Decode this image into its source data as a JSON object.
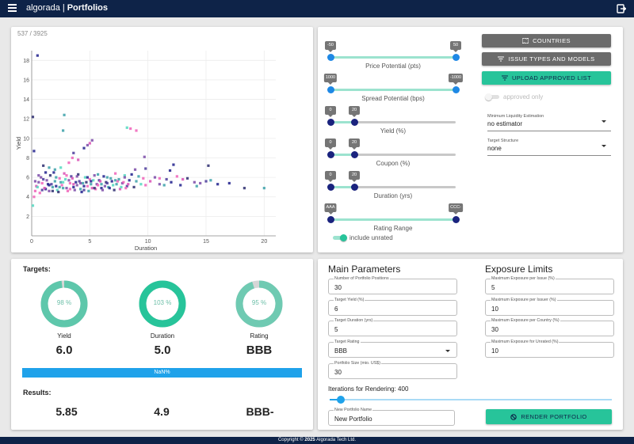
{
  "app": {
    "name": "algorada",
    "separator": "|",
    "page": "Portfolios"
  },
  "footer": {
    "prefix": "Copyright ©",
    "year": "2025",
    "company": "Algorada Tech Ltd."
  },
  "chart": {
    "count_label": "537 / 3925",
    "chart_data": {
      "type": "scatter",
      "xlabel": "Duration",
      "ylabel": "Yield",
      "xlim": [
        0,
        21
      ],
      "ylim": [
        0,
        19
      ],
      "xticks": [
        0,
        5,
        10,
        15,
        20
      ],
      "yticks": [
        2,
        4,
        6,
        8,
        10,
        12,
        14,
        16,
        18
      ],
      "grid": true,
      "colors": [
        "#1e1e8c",
        "#4a3a9a",
        "#7a4aa8",
        "#d94fb4",
        "#f062b8",
        "#54d8c0",
        "#3aa0a8",
        "#2c2c6e"
      ],
      "points": [
        [
          0.5,
          18.5
        ],
        [
          0.1,
          12.2
        ],
        [
          2.8,
          12.4
        ],
        [
          2.7,
          10.8
        ],
        [
          8.2,
          11.1
        ],
        [
          8.5,
          11.0
        ],
        [
          9.0,
          10.8
        ],
        [
          5.0,
          9.5
        ],
        [
          5.2,
          9.8
        ],
        [
          4.8,
          9.3
        ],
        [
          3.6,
          8.5
        ],
        [
          4.5,
          9.0
        ],
        [
          0.2,
          8.7
        ],
        [
          1.0,
          7.2
        ],
        [
          1.5,
          7.0
        ],
        [
          2.0,
          6.8
        ],
        [
          2.5,
          7.0
        ],
        [
          3.2,
          7.5
        ],
        [
          3.5,
          8.0
        ],
        [
          4.0,
          7.8
        ],
        [
          9.7,
          8.1
        ],
        [
          8.9,
          6.8
        ],
        [
          9.8,
          6.9
        ],
        [
          11.9,
          6.7
        ],
        [
          12.2,
          7.3
        ],
        [
          15.2,
          7.2
        ],
        [
          6.5,
          6.0
        ],
        [
          7.2,
          5.7
        ],
        [
          8.0,
          6.2
        ],
        [
          11.0,
          5.9
        ],
        [
          12.5,
          6.1
        ],
        [
          13.0,
          5.8
        ],
        [
          14.0,
          5.5
        ],
        [
          14.5,
          5.4
        ],
        [
          15.0,
          5.6
        ],
        [
          16.0,
          5.3
        ],
        [
          17.0,
          5.4
        ],
        [
          18.3,
          4.9
        ],
        [
          20.0,
          4.9
        ],
        [
          11.4,
          5.2
        ],
        [
          0.1,
          3.1
        ],
        [
          0.2,
          4.0
        ],
        [
          0.3,
          4.6
        ],
        [
          0.4,
          5.1
        ],
        [
          0.6,
          5.5
        ],
        [
          0.8,
          6.0
        ],
        [
          1.0,
          5.8
        ],
        [
          1.2,
          4.8
        ],
        [
          1.4,
          5.3
        ],
        [
          1.6,
          6.2
        ],
        [
          1.8,
          5.0
        ],
        [
          2.0,
          5.6
        ],
        [
          2.2,
          4.7
        ],
        [
          2.4,
          5.9
        ],
        [
          2.6,
          5.2
        ],
        [
          2.8,
          6.4
        ],
        [
          3.0,
          4.9
        ],
        [
          3.2,
          5.7
        ],
        [
          3.4,
          6.1
        ],
        [
          3.6,
          5.0
        ],
        [
          3.8,
          5.5
        ],
        [
          4.0,
          6.3
        ],
        [
          4.2,
          4.8
        ],
        [
          4.4,
          5.4
        ],
        [
          4.6,
          6.0
        ],
        [
          4.8,
          5.1
        ],
        [
          5.0,
          5.8
        ],
        [
          5.2,
          4.9
        ],
        [
          5.4,
          6.2
        ],
        [
          5.6,
          5.3
        ],
        [
          5.8,
          5.7
        ],
        [
          6.0,
          4.9
        ],
        [
          6.2,
          6.1
        ],
        [
          6.4,
          5.5
        ],
        [
          6.6,
          5.0
        ],
        [
          6.8,
          5.9
        ],
        [
          7.0,
          5.2
        ],
        [
          7.2,
          6.4
        ],
        [
          7.4,
          5.6
        ],
        [
          7.6,
          4.8
        ],
        [
          7.8,
          5.4
        ],
        [
          8.0,
          6.0
        ],
        [
          8.2,
          5.1
        ],
        [
          8.4,
          5.7
        ],
        [
          8.6,
          6.3
        ],
        [
          8.8,
          5.0
        ],
        [
          9.0,
          5.6
        ],
        [
          9.2,
          6.1
        ],
        [
          9.4,
          5.3
        ],
        [
          9.6,
          5.9
        ],
        [
          9.8,
          5.2
        ],
        [
          10.2,
          5.6
        ],
        [
          10.6,
          6.0
        ],
        [
          11.0,
          5.3
        ],
        [
          11.6,
          5.8
        ],
        [
          12.0,
          5.5
        ],
        [
          12.8,
          5.2
        ],
        [
          13.4,
          5.9
        ],
        [
          14.2,
          5.1
        ],
        [
          15.4,
          5.7
        ],
        [
          0.5,
          5.0
        ],
        [
          0.7,
          4.4
        ],
        [
          0.9,
          5.4
        ],
        [
          1.1,
          4.9
        ],
        [
          1.3,
          5.7
        ],
        [
          1.5,
          4.6
        ],
        [
          1.7,
          5.3
        ],
        [
          1.9,
          6.5
        ],
        [
          2.1,
          5.1
        ],
        [
          2.3,
          4.5
        ],
        [
          2.5,
          5.5
        ],
        [
          2.7,
          4.9
        ],
        [
          2.9,
          5.8
        ],
        [
          3.1,
          4.6
        ],
        [
          3.3,
          5.4
        ],
        [
          3.5,
          5.9
        ],
        [
          3.7,
          4.7
        ],
        [
          3.9,
          5.2
        ],
        [
          4.1,
          5.6
        ],
        [
          4.3,
          4.5
        ],
        [
          4.5,
          5.1
        ],
        [
          4.7,
          5.5
        ],
        [
          4.9,
          4.6
        ],
        [
          5.1,
          5.3
        ],
        [
          5.3,
          5.7
        ],
        [
          5.5,
          4.8
        ],
        [
          5.7,
          5.2
        ],
        [
          5.9,
          5.6
        ],
        [
          6.1,
          4.7
        ],
        [
          6.3,
          5.1
        ],
        [
          6.5,
          5.4
        ],
        [
          6.7,
          4.9
        ],
        [
          6.9,
          5.6
        ],
        [
          7.1,
          4.7
        ],
        [
          7.3,
          5.3
        ],
        [
          7.5,
          5.8
        ],
        [
          7.7,
          5.0
        ],
        [
          7.9,
          5.5
        ],
        [
          8.1,
          4.9
        ],
        [
          8.3,
          5.3
        ],
        [
          0.3,
          5.6
        ],
        [
          0.6,
          6.2
        ],
        [
          0.9,
          4.7
        ],
        [
          1.2,
          6.5
        ],
        [
          1.5,
          5.2
        ],
        [
          1.8,
          4.6
        ],
        [
          2.1,
          6.0
        ],
        [
          2.4,
          5.0
        ],
        [
          2.7,
          5.5
        ],
        [
          3.0,
          6.2
        ],
        [
          3.3,
          4.8
        ],
        [
          3.6,
          5.3
        ],
        [
          3.9,
          6.1
        ],
        [
          4.2,
          5.4
        ],
        [
          4.5,
          4.7
        ],
        [
          4.8,
          6.0
        ],
        [
          5.1,
          5.6
        ],
        [
          5.4,
          4.9
        ],
        [
          5.7,
          6.3
        ],
        [
          6.0,
          5.3
        ]
      ]
    }
  },
  "filters": {
    "sliders": [
      {
        "label": "Price Potential (pts)",
        "min_label": "-50",
        "max_label": "50",
        "low": 0,
        "high": 1,
        "color": "#1e88e5"
      },
      {
        "label": "Spread Potential (bps)",
        "min_label": "1000",
        "max_label": "-1000",
        "low": 0,
        "high": 1,
        "color": "#1e88e5"
      },
      {
        "label": "Yield (%)",
        "min_label": "0",
        "max_label": "20",
        "low": 0,
        "high": 0.19,
        "color": "#1a237e"
      },
      {
        "label": "Coupon (%)",
        "min_label": "0",
        "max_label": "20",
        "low": 0,
        "high": 0.19,
        "color": "#1a237e"
      },
      {
        "label": "Duration (yrs)",
        "min_label": "0",
        "max_label": "20",
        "low": 0,
        "high": 0.19,
        "color": "#1a237e"
      },
      {
        "label": "Rating Range",
        "min_label": "AAA",
        "max_label": "CCC-",
        "low": 0,
        "high": 1,
        "color": "#1a237e"
      }
    ],
    "include_unrated_label": "include unrated",
    "buttons": {
      "countries": "COUNTRIES",
      "issue_types": "ISSUE TYPES AND MODELS",
      "upload": "UPLOAD APPROVED LIST"
    },
    "approved_only_label": "approved only",
    "liquidity": {
      "label": "Minimum Liquidity Estimation",
      "value": "no estimator"
    },
    "structure": {
      "label": "Target Structure",
      "value": "none"
    }
  },
  "targets": {
    "title": "Targets:",
    "donuts": [
      {
        "pct_label": "98 %",
        "pct": 0.98,
        "name": "Yield",
        "value": "6.0",
        "color": "#5ec7ab",
        "rest": "#d6d6d6"
      },
      {
        "pct_label": "103 %",
        "pct": 1.0,
        "name": "Duration",
        "value": "5.0",
        "color": "#27c49a",
        "rest": "#d6d6d6"
      },
      {
        "pct_label": "95 %",
        "pct": 0.95,
        "name": "Rating",
        "value": "BBB",
        "color": "#6fcab2",
        "rest": "#d6d6d6"
      }
    ],
    "progress_label": "NaN%",
    "results_title": "Results:",
    "results": [
      "5.85",
      "4.9",
      "BBB-"
    ]
  },
  "params": {
    "main_title": "Main Parameters",
    "exposure_title": "Exposure Limits",
    "main_fields": [
      {
        "label": "Number of Portfolio Positions",
        "value": "30"
      },
      {
        "label": "Target Yield (%)",
        "value": "6"
      },
      {
        "label": "Target Duration (yrs)",
        "value": "5"
      },
      {
        "label": "Target Rating",
        "value": "BBB"
      },
      {
        "label": "Portfolio Size (mio. US$)",
        "value": "30"
      }
    ],
    "exposure_fields": [
      {
        "label": "Maximum Exposure per Issue (%)",
        "value": "5"
      },
      {
        "label": "Maximum Exposure per Issuer (%)",
        "value": "10"
      },
      {
        "label": "Maximum Exposure per Country (%)",
        "value": "30"
      },
      {
        "label": "Maximum Exposure for Unrated (%)",
        "value": "10"
      }
    ],
    "iterations_label": "Iterations for Rendering: 400",
    "iterations_fraction": 0.04,
    "name_field": {
      "label": "New Portfolio Name",
      "value": "New Portfolio"
    },
    "render_button": "RENDER PORTFOLIO"
  }
}
